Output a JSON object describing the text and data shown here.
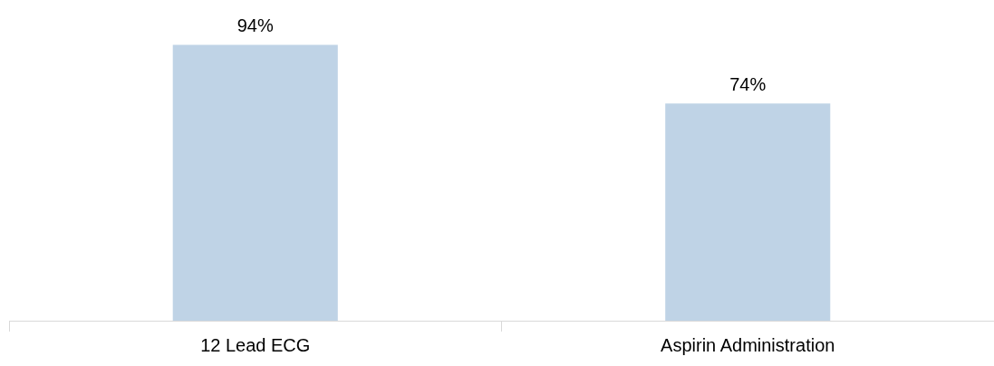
{
  "chart_data": {
    "type": "bar",
    "categories": [
      "12 Lead ECG",
      "Aspirin Administration"
    ],
    "values": [
      94,
      74
    ],
    "value_labels": [
      "94%",
      "74%"
    ],
    "color": "#bfd3e6",
    "grid": false,
    "legend": false,
    "tick_labels": "x"
  }
}
